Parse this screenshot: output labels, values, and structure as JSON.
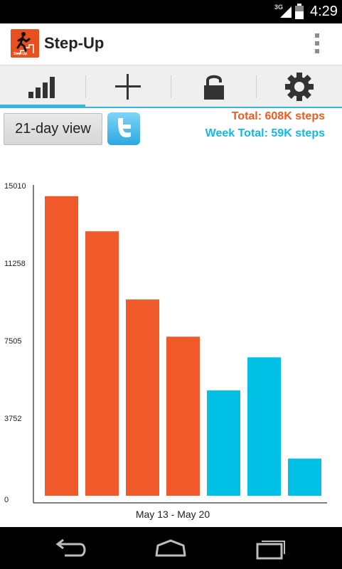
{
  "status_bar": {
    "network": "3G",
    "time": "4:29"
  },
  "app": {
    "title": "Step-Up",
    "logo_text": "Step-Up"
  },
  "tabs": [
    {
      "icon": "bar-chart-icon",
      "selected": true
    },
    {
      "icon": "plus-icon",
      "selected": false
    },
    {
      "icon": "lock-icon",
      "selected": false
    },
    {
      "icon": "gear-icon",
      "selected": false
    }
  ],
  "controls": {
    "view_button_label": "21-day view",
    "twitter_icon": "twitter-icon",
    "total_text": "Total: 608K steps",
    "week_total_text": "Week Total: 59K steps"
  },
  "colors": {
    "accent": "#33b5e5",
    "orange": "#f05a2b",
    "cyan": "#00c0e5"
  },
  "chart_data": {
    "type": "bar",
    "title": "",
    "xlabel": "May 13 - May 20",
    "ylabel": "",
    "y_ticks": [
      "15010",
      "11258",
      "7505",
      "3752",
      "0"
    ],
    "ylim": [
      0,
      15010
    ],
    "values": [
      14500,
      12800,
      9500,
      7700,
      5100,
      6700,
      1800
    ],
    "bar_colors": [
      "#f05a2b",
      "#f05a2b",
      "#f05a2b",
      "#f05a2b",
      "#00c0e5",
      "#00c0e5",
      "#00c0e5"
    ],
    "grid": false,
    "legend": "none"
  },
  "nav_bar": [
    {
      "icon": "back-icon"
    },
    {
      "icon": "home-icon"
    },
    {
      "icon": "recent-apps-icon"
    }
  ]
}
